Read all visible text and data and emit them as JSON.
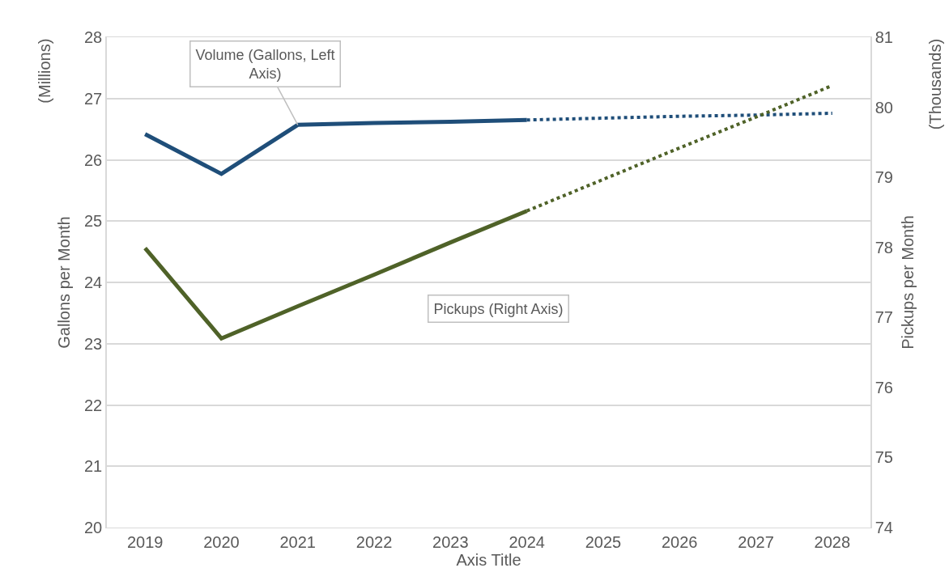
{
  "chart_data": {
    "type": "line",
    "xlabel": "Axis Title",
    "ylabel": "Gallons per Month",
    "y2label": "Pickups per Month",
    "categories": [
      "2019",
      "2020",
      "2021",
      "2022",
      "2023",
      "2024",
      "2025",
      "2026",
      "2027",
      "2028"
    ],
    "series": [
      {
        "color": "#1f4e79",
        "line_style": "solid",
        "values": [
          26.42,
          25.77,
          26.57,
          26.6,
          26.62,
          26.65,
          null,
          null,
          null,
          null
        ]
      },
      {
        "color": "#1f4e79",
        "line_style": "dotted",
        "values": [
          null,
          null,
          null,
          null,
          null,
          26.65,
          26.68,
          26.71,
          26.73,
          26.76
        ]
      },
      {
        "color": "#4f6228",
        "line_style": "solid",
        "axis": "y2",
        "values": [
          77.99,
          76.7,
          77.16,
          77.61,
          78.07,
          78.52,
          null,
          null,
          null,
          null
        ]
      },
      {
        "color": "#4f6228",
        "line_style": "dotted",
        "axis": "y2",
        "values": [
          null,
          null,
          null,
          null,
          null,
          78.52,
          78.97,
          79.42,
          79.86,
          80.31
        ]
      }
    ],
    "ylim": [
      20,
      28
    ],
    "yticks": [
      20,
      21,
      22,
      23,
      24,
      25,
      26,
      27,
      28
    ],
    "y2lim": [
      74,
      81
    ],
    "y2ticks": [
      74,
      75,
      76,
      77,
      78,
      79,
      80,
      81
    ],
    "grid": "y",
    "marker": "none",
    "annotations": [
      {
        "text": "Volume (Gallons, Left Axis)",
        "x": "2021",
        "y": 26.57
      },
      "Pickups (Right Axis)",
      "(Millions)",
      "(Thousands)"
    ]
  }
}
